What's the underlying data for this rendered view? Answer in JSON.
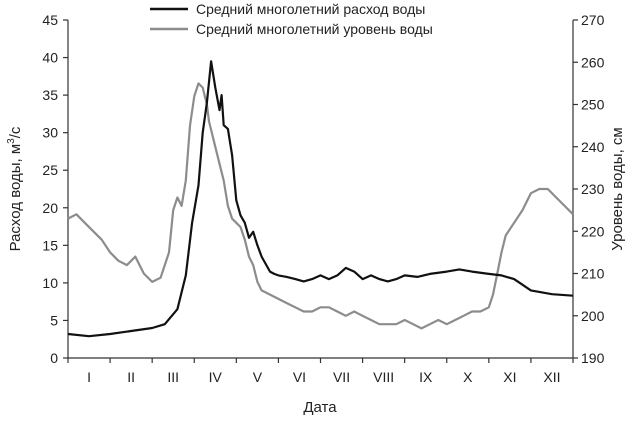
{
  "chart_data": {
    "type": "line",
    "xlabel": "Дата",
    "ylabel_left": "Расход воды, м³/с",
    "ylabel_left_main": "Расход воды, м",
    "ylabel_left_sup": "3",
    "ylabel_left_tail": "/с",
    "ylabel_right": "Уровень воды, см",
    "ylim_left": [
      0,
      45
    ],
    "ylim_right": [
      190,
      270
    ],
    "yticks_left": [
      "0",
      "5",
      "10",
      "15",
      "20",
      "25",
      "30",
      "35",
      "40",
      "45"
    ],
    "yticks_right": [
      "190",
      "200",
      "210",
      "220",
      "230",
      "240",
      "250",
      "260",
      "270"
    ],
    "months": [
      "I",
      "II",
      "III",
      "IV",
      "V",
      "VI",
      "VII",
      "VIII",
      "IX",
      "X",
      "XI",
      "XII"
    ],
    "legend_position": "top-center",
    "grid": false,
    "series": [
      {
        "name": "Средний многолетний расход воды",
        "axis": "left",
        "color": "#111111",
        "x_month": [
          0,
          0.5,
          1,
          1.5,
          2,
          2.3,
          2.6,
          2.8,
          2.95,
          3.1,
          3.2,
          3.3,
          3.4,
          3.5,
          3.6,
          3.65,
          3.7,
          3.8,
          3.9,
          4.0,
          4.1,
          4.2,
          4.3,
          4.4,
          4.5,
          4.6,
          4.7,
          4.8,
          4.9,
          5.0,
          5.2,
          5.4,
          5.6,
          5.8,
          6.0,
          6.2,
          6.4,
          6.6,
          6.8,
          7.0,
          7.2,
          7.4,
          7.6,
          7.8,
          8.0,
          8.3,
          8.6,
          9.0,
          9.3,
          9.6,
          10.0,
          10.3,
          10.6,
          11.0,
          11.5,
          12.0
        ],
        "values": [
          3.2,
          2.9,
          3.2,
          3.6,
          4.0,
          4.5,
          6.5,
          11,
          18,
          23,
          30,
          34,
          39.5,
          36,
          33,
          35,
          31,
          30.5,
          27,
          21,
          19,
          18,
          16,
          16.8,
          15,
          13.5,
          12.5,
          11.5,
          11.2,
          11,
          10.8,
          10.5,
          10.2,
          10.5,
          11,
          10.5,
          11,
          12,
          11.5,
          10.5,
          11,
          10.5,
          10.2,
          10.5,
          11,
          10.8,
          11.2,
          11.5,
          11.8,
          11.5,
          11.2,
          11,
          10.5,
          9.0,
          8.5,
          8.3
        ]
      },
      {
        "name": "Средний многолетний уровень воды",
        "axis": "right",
        "color": "#8c8c8c",
        "x_month": [
          0,
          0.2,
          0.4,
          0.6,
          0.8,
          1.0,
          1.2,
          1.4,
          1.6,
          1.8,
          2.0,
          2.2,
          2.4,
          2.5,
          2.6,
          2.7,
          2.8,
          2.9,
          3.0,
          3.1,
          3.2,
          3.3,
          3.35,
          3.4,
          3.5,
          3.6,
          3.7,
          3.8,
          3.9,
          4.0,
          4.1,
          4.2,
          4.3,
          4.4,
          4.5,
          4.6,
          4.8,
          5.0,
          5.2,
          5.4,
          5.6,
          5.8,
          6.0,
          6.2,
          6.4,
          6.6,
          6.8,
          7.0,
          7.2,
          7.4,
          7.6,
          7.8,
          8.0,
          8.2,
          8.4,
          8.6,
          8.8,
          9.0,
          9.2,
          9.4,
          9.6,
          9.8,
          10.0,
          10.1,
          10.2,
          10.3,
          10.4,
          10.6,
          10.8,
          11.0,
          11.2,
          11.4,
          11.6,
          11.8,
          12.0
        ],
        "values": [
          223,
          224,
          222,
          220,
          218,
          215,
          213,
          212,
          214,
          210,
          208,
          209,
          215,
          225,
          228,
          226,
          232,
          245,
          252,
          255,
          254,
          250,
          246,
          244,
          240,
          236,
          232,
          226,
          223,
          222,
          221,
          218,
          214,
          212,
          208,
          206,
          205,
          204,
          203,
          202,
          201,
          201,
          202,
          202,
          201,
          200,
          201,
          200,
          199,
          198,
          198,
          198,
          199,
          198,
          197,
          198,
          199,
          198,
          199,
          200,
          201,
          201,
          202,
          205,
          210,
          215,
          219,
          222,
          225,
          229,
          230,
          230,
          228,
          226,
          224
        ]
      }
    ]
  }
}
